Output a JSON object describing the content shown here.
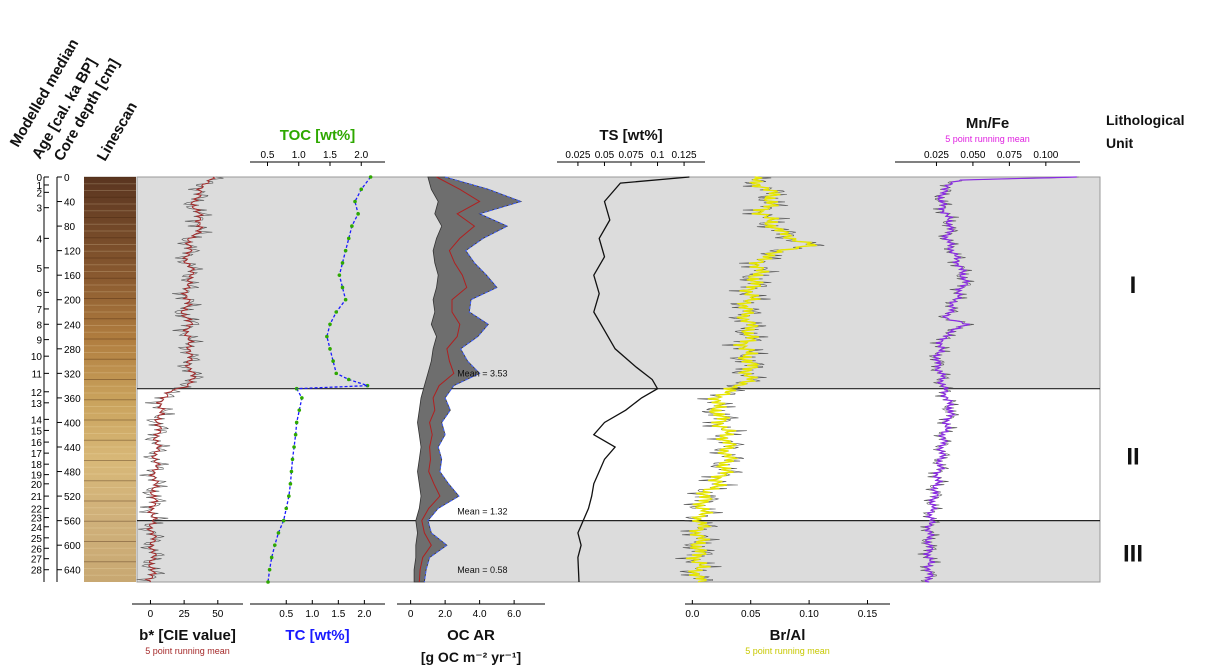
{
  "chart_data": {
    "type": "line",
    "depth_axis": {
      "label": "Core depth [cm]",
      "range": [
        0,
        660
      ],
      "ticks": [
        "0",
        "40",
        "80",
        "120",
        "160",
        "200",
        "240",
        "280",
        "320",
        "360",
        "400",
        "440",
        "480",
        "520",
        "560",
        "600",
        "640"
      ]
    },
    "age_axis": {
      "label": "Modelled median Age [cal. ka BP]",
      "ticks": [
        {
          "age": "0",
          "depth": 0
        },
        {
          "age": "1",
          "depth": 13
        },
        {
          "age": "2",
          "depth": 25
        },
        {
          "age": "3",
          "depth": 50
        },
        {
          "age": "4",
          "depth": 100
        },
        {
          "age": "5",
          "depth": 148
        },
        {
          "age": "6",
          "depth": 188
        },
        {
          "age": "7",
          "depth": 215
        },
        {
          "age": "8",
          "depth": 240
        },
        {
          "age": "9",
          "depth": 265
        },
        {
          "age": "10",
          "depth": 292
        },
        {
          "age": "11",
          "depth": 320
        },
        {
          "age": "12",
          "depth": 350
        },
        {
          "age": "13",
          "depth": 368
        },
        {
          "age": "14",
          "depth": 395
        },
        {
          "age": "15",
          "depth": 413
        },
        {
          "age": "16",
          "depth": 432
        },
        {
          "age": "17",
          "depth": 450
        },
        {
          "age": "18",
          "depth": 468
        },
        {
          "age": "19",
          "depth": 485
        },
        {
          "age": "20",
          "depth": 500
        },
        {
          "age": "21",
          "depth": 520
        },
        {
          "age": "22",
          "depth": 540
        },
        {
          "age": "23",
          "depth": 555
        },
        {
          "age": "24",
          "depth": 570
        },
        {
          "age": "25",
          "depth": 588
        },
        {
          "age": "26",
          "depth": 605
        },
        {
          "age": "27",
          "depth": 622
        },
        {
          "age": "28",
          "depth": 640
        }
      ]
    },
    "linescan_label": "Linescan",
    "units": [
      {
        "name": "I",
        "top": 0,
        "bottom": 345
      },
      {
        "name": "II",
        "top": 345,
        "bottom": 560
      },
      {
        "name": "III",
        "top": 560,
        "bottom": 660
      }
    ],
    "unit_header": "Lithological Unit",
    "colors": {
      "shade": "#dcdcdc",
      "bstar": "#a52a2a",
      "toc": "#2ea800",
      "tc": "#1a1aff",
      "brai": "#e6e600",
      "mnfe": "#8a2be2",
      "raw": "#555555",
      "ocar": "#555555"
    },
    "panels": [
      {
        "id": "bstar",
        "label": "b* [CIE value]",
        "sublabel": "5 point running mean",
        "axis": "bottom",
        "range": [
          -10,
          65
        ],
        "ticks": [
          "0",
          "25",
          "50"
        ],
        "profile": [
          [
            0,
            45
          ],
          [
            20,
            38
          ],
          [
            40,
            32
          ],
          [
            60,
            35
          ],
          [
            80,
            38
          ],
          [
            100,
            30
          ],
          [
            120,
            28
          ],
          [
            140,
            27
          ],
          [
            160,
            32
          ],
          [
            180,
            26
          ],
          [
            200,
            28
          ],
          [
            220,
            25
          ],
          [
            240,
            29
          ],
          [
            260,
            27
          ],
          [
            280,
            30
          ],
          [
            300,
            28
          ],
          [
            320,
            31
          ],
          [
            340,
            30
          ],
          [
            350,
            12
          ],
          [
            370,
            8
          ],
          [
            400,
            6
          ],
          [
            430,
            5
          ],
          [
            460,
            4
          ],
          [
            500,
            3
          ],
          [
            540,
            2
          ],
          [
            570,
            1
          ],
          [
            600,
            2
          ],
          [
            640,
            1
          ],
          [
            660,
            0
          ]
        ]
      },
      {
        "id": "toc",
        "label": "TOC [wt%]",
        "axis": "top",
        "range": [
          0.3,
          2.3
        ],
        "ticks": [
          "0.5",
          "1.0",
          "1.5",
          "2.0"
        ],
        "profile": [
          [
            0,
            2.15
          ],
          [
            20,
            2.0
          ],
          [
            40,
            1.9
          ],
          [
            60,
            1.95
          ],
          [
            80,
            1.85
          ],
          [
            100,
            1.8
          ],
          [
            120,
            1.75
          ],
          [
            140,
            1.7
          ],
          [
            160,
            1.65
          ],
          [
            180,
            1.7
          ],
          [
            200,
            1.75
          ],
          [
            220,
            1.6
          ],
          [
            240,
            1.5
          ],
          [
            260,
            1.45
          ],
          [
            280,
            1.5
          ],
          [
            300,
            1.55
          ],
          [
            320,
            1.6
          ],
          [
            330,
            1.8
          ],
          [
            340,
            2.1
          ]
        ]
      },
      {
        "id": "tc",
        "label": "TC [wt%]",
        "axis": "bottom",
        "range": [
          -0.1,
          2.3
        ],
        "ticks": [
          "0.5",
          "1.0",
          "1.5",
          "2.0"
        ],
        "profile": [
          [
            345,
            0.7
          ],
          [
            360,
            0.8
          ],
          [
            380,
            0.75
          ],
          [
            400,
            0.7
          ],
          [
            420,
            0.68
          ],
          [
            440,
            0.65
          ],
          [
            460,
            0.62
          ],
          [
            480,
            0.6
          ],
          [
            500,
            0.58
          ],
          [
            520,
            0.55
          ],
          [
            540,
            0.5
          ],
          [
            560,
            0.45
          ],
          [
            580,
            0.35
          ],
          [
            600,
            0.28
          ],
          [
            620,
            0.22
          ],
          [
            640,
            0.18
          ],
          [
            660,
            0.15
          ]
        ]
      },
      {
        "id": "ocar",
        "label": "OC AR",
        "label2": "[g OC m⁻² yr⁻¹]",
        "axis": "bottom",
        "range": [
          -0.5,
          7.5
        ],
        "ticks": [
          "0",
          "2.0",
          "4.0",
          "6.0"
        ],
        "means": [
          {
            "text": "Mean = 3.53",
            "depth": 330
          },
          {
            "text": "Mean = 1.32",
            "depth": 555
          },
          {
            "text": "Mean = 0.58",
            "depth": 650
          }
        ],
        "lower": [
          [
            0,
            1.0
          ],
          [
            20,
            1.2
          ],
          [
            40,
            1.6
          ],
          [
            60,
            1.4
          ],
          [
            80,
            1.8
          ],
          [
            100,
            1.5
          ],
          [
            120,
            1.3
          ],
          [
            140,
            1.4
          ],
          [
            160,
            1.6
          ],
          [
            180,
            1.5
          ],
          [
            200,
            1.3
          ],
          [
            220,
            1.4
          ],
          [
            240,
            1.2
          ],
          [
            260,
            1.5
          ],
          [
            280,
            1.3
          ],
          [
            300,
            1.2
          ],
          [
            320,
            1.0
          ],
          [
            340,
            0.8
          ],
          [
            360,
            0.6
          ],
          [
            380,
            0.5
          ],
          [
            400,
            0.4
          ],
          [
            420,
            0.5
          ],
          [
            440,
            0.6
          ],
          [
            460,
            0.5
          ],
          [
            480,
            0.4
          ],
          [
            500,
            0.5
          ],
          [
            520,
            0.6
          ],
          [
            540,
            0.5
          ],
          [
            560,
            0.3
          ],
          [
            580,
            0.4
          ],
          [
            600,
            0.3
          ],
          [
            620,
            0.3
          ],
          [
            640,
            0.2
          ],
          [
            660,
            0.2
          ]
        ],
        "upper": [
          [
            0,
            2.0
          ],
          [
            20,
            4.5
          ],
          [
            40,
            6.4
          ],
          [
            60,
            4.0
          ],
          [
            80,
            5.6
          ],
          [
            100,
            4.2
          ],
          [
            120,
            3.2
          ],
          [
            140,
            3.7
          ],
          [
            160,
            4.4
          ],
          [
            180,
            5.0
          ],
          [
            200,
            3.5
          ],
          [
            220,
            3.4
          ],
          [
            240,
            4.5
          ],
          [
            260,
            3.9
          ],
          [
            280,
            2.9
          ],
          [
            300,
            3.3
          ],
          [
            320,
            4.0
          ],
          [
            340,
            2.5
          ],
          [
            360,
            2.0
          ],
          [
            380,
            2.3
          ],
          [
            400,
            1.8
          ],
          [
            420,
            2.0
          ],
          [
            440,
            1.6
          ],
          [
            460,
            1.8
          ],
          [
            480,
            1.7
          ],
          [
            500,
            2.2
          ],
          [
            520,
            2.8
          ],
          [
            540,
            1.6
          ],
          [
            560,
            1.0
          ],
          [
            580,
            1.2
          ],
          [
            600,
            2.1
          ],
          [
            620,
            1.1
          ],
          [
            640,
            0.9
          ],
          [
            660,
            0.8
          ]
        ]
      },
      {
        "id": "ts",
        "label": "TS [wt%]",
        "axis": "top",
        "range": [
          0.01,
          0.14
        ],
        "ticks": [
          "0.025",
          "0.05",
          "0.075",
          "0.1",
          "0.125"
        ],
        "profile": [
          [
            0,
            0.13
          ],
          [
            10,
            0.065
          ],
          [
            40,
            0.05
          ],
          [
            70,
            0.055
          ],
          [
            100,
            0.045
          ],
          [
            130,
            0.05
          ],
          [
            160,
            0.04
          ],
          [
            190,
            0.045
          ],
          [
            220,
            0.04
          ],
          [
            250,
            0.05
          ],
          [
            280,
            0.06
          ],
          [
            310,
            0.08
          ],
          [
            330,
            0.095
          ],
          [
            345,
            0.1
          ],
          [
            360,
            0.085
          ],
          [
            380,
            0.07
          ],
          [
            400,
            0.05
          ],
          [
            420,
            0.04
          ],
          [
            440,
            0.06
          ],
          [
            460,
            0.05
          ],
          [
            480,
            0.045
          ],
          [
            500,
            0.04
          ],
          [
            520,
            0.038
          ],
          [
            540,
            0.035
          ],
          [
            560,
            0.03
          ],
          [
            580,
            0.025
          ],
          [
            600,
            0.028
          ],
          [
            620,
            0.025
          ],
          [
            660,
            0.026
          ]
        ]
      },
      {
        "id": "brai",
        "label": "Br/Al",
        "sublabel": "5 point running mean",
        "axis": "bottom",
        "range": [
          -0.002,
          0.165
        ],
        "ticks": [
          "0.0",
          "0.05",
          "0.10",
          "0.15"
        ],
        "profile": [
          [
            0,
            0.05
          ],
          [
            30,
            0.07
          ],
          [
            60,
            0.06
          ],
          [
            90,
            0.075
          ],
          [
            110,
            0.1
          ],
          [
            130,
            0.06
          ],
          [
            160,
            0.055
          ],
          [
            190,
            0.05
          ],
          [
            220,
            0.045
          ],
          [
            250,
            0.05
          ],
          [
            280,
            0.045
          ],
          [
            310,
            0.05
          ],
          [
            340,
            0.045
          ],
          [
            345,
            0.03
          ],
          [
            370,
            0.02
          ],
          [
            400,
            0.025
          ],
          [
            430,
            0.03
          ],
          [
            460,
            0.03
          ],
          [
            490,
            0.025
          ],
          [
            520,
            0.01
          ],
          [
            550,
            0.008
          ],
          [
            580,
            0.006
          ],
          [
            620,
            0.005
          ],
          [
            660,
            0.005
          ]
        ]
      },
      {
        "id": "mnfe",
        "label": "Mn/Fe",
        "sublabel": "5 point running mean",
        "axis": "top",
        "range": [
          0.0,
          0.12
        ],
        "ticks": [
          "0.025",
          "0.050",
          "0.075",
          "0.100"
        ],
        "profile": [
          [
            0,
            0.12
          ],
          [
            5,
            0.04
          ],
          [
            20,
            0.03
          ],
          [
            40,
            0.028
          ],
          [
            80,
            0.035
          ],
          [
            100,
            0.032
          ],
          [
            140,
            0.04
          ],
          [
            170,
            0.045
          ],
          [
            200,
            0.038
          ],
          [
            230,
            0.032
          ],
          [
            240,
            0.045
          ],
          [
            260,
            0.03
          ],
          [
            300,
            0.025
          ],
          [
            320,
            0.028
          ],
          [
            345,
            0.03
          ],
          [
            380,
            0.035
          ],
          [
            420,
            0.03
          ],
          [
            460,
            0.028
          ],
          [
            500,
            0.025
          ],
          [
            540,
            0.022
          ],
          [
            580,
            0.02
          ],
          [
            620,
            0.02
          ],
          [
            660,
            0.02
          ]
        ]
      }
    ]
  }
}
